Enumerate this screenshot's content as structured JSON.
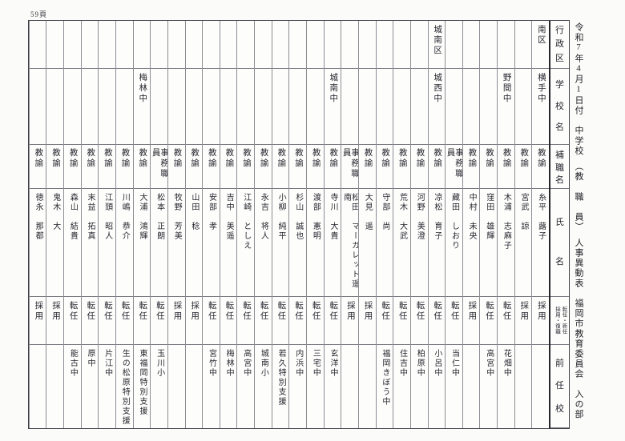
{
  "page": {
    "number_label": "59頁"
  },
  "document_title": "令和7年4月1日付　中学校　（教　職　員）　人事異動表　福岡市教育委員会　入の部",
  "table": {
    "headers": {
      "district": "行政区",
      "school": "学校名",
      "position": "補職名",
      "name": "氏名",
      "appointment_line1": "採用・復職",
      "appointment_line2": "転任・新任",
      "previous_school": "前任校"
    },
    "columns": [
      {
        "district": "南区",
        "school": "横手中",
        "position": "教諭",
        "name": "糸平　蕗子",
        "appointment": "採用",
        "previous_school": ""
      },
      {
        "district": "",
        "school": "",
        "position": "教諭",
        "name": "宮武　諒",
        "appointment": "採用",
        "previous_school": ""
      },
      {
        "district": "",
        "school": "野間中",
        "position": "教諭",
        "name": "木浦　志麻子",
        "appointment": "転任",
        "previous_school": "花畑中"
      },
      {
        "district": "",
        "school": "",
        "position": "教諭",
        "name": "窪田　雄輝",
        "appointment": "転任",
        "previous_school": "高宮中"
      },
      {
        "district": "",
        "school": "",
        "position": "教諭",
        "name": "中村　未央",
        "appointment": "採用",
        "previous_school": ""
      },
      {
        "district": "",
        "school": "",
        "position": "事務職員",
        "name": "藏田　しおり",
        "appointment": "転任",
        "previous_school": "当仁中"
      },
      {
        "district": "城南区",
        "school": "城西中",
        "position": "教諭",
        "name": "凉松　育子",
        "appointment": "転任",
        "previous_school": "小呂中"
      },
      {
        "district": "",
        "school": "",
        "position": "教諭",
        "name": "河野　美澄",
        "appointment": "転任",
        "previous_school": "柏原中"
      },
      {
        "district": "",
        "school": "",
        "position": "教諭",
        "name": "荒木　大武",
        "appointment": "転任",
        "previous_school": "住吉中"
      },
      {
        "district": "",
        "school": "",
        "position": "教諭",
        "name": "守部　尚",
        "appointment": "転任",
        "previous_school": "福岡きぼう中"
      },
      {
        "district": "",
        "school": "",
        "position": "教諭",
        "name": "大見　遥",
        "appointment": "採用",
        "previous_school": ""
      },
      {
        "district": "",
        "school": "",
        "position": "事務職員",
        "name": "松田　マーガレット遥南",
        "appointment": "採用",
        "previous_school": ""
      },
      {
        "district": "",
        "school": "城南中",
        "position": "教諭",
        "name": "寺川　大貴",
        "appointment": "転任",
        "previous_school": "玄洋中"
      },
      {
        "district": "",
        "school": "",
        "position": "教諭",
        "name": "渡部　憲明",
        "appointment": "転任",
        "previous_school": "三宅中"
      },
      {
        "district": "",
        "school": "",
        "position": "教諭",
        "name": "杉山　誠也",
        "appointment": "転任",
        "previous_school": "内浜中"
      },
      {
        "district": "",
        "school": "",
        "position": "教諭",
        "name": "小柳　純平",
        "appointment": "転任",
        "previous_school": "若久特別支援"
      },
      {
        "district": "",
        "school": "",
        "position": "教諭",
        "name": "永吉　将人",
        "appointment": "転任",
        "previous_school": "城南小"
      },
      {
        "district": "",
        "school": "",
        "position": "教諭",
        "name": "江崎　としえ",
        "appointment": "転任",
        "previous_school": "高宮中"
      },
      {
        "district": "",
        "school": "",
        "position": "教諭",
        "name": "吉中　美遥",
        "appointment": "転任",
        "previous_school": "梅林中"
      },
      {
        "district": "",
        "school": "",
        "position": "教諭",
        "name": "安部　孝",
        "appointment": "転任",
        "previous_school": "宮竹中"
      },
      {
        "district": "",
        "school": "",
        "position": "教諭",
        "name": "山田　稔",
        "appointment": "採用",
        "previous_school": ""
      },
      {
        "district": "",
        "school": "",
        "position": "教諭",
        "name": "牧野　芳美",
        "appointment": "採用",
        "previous_school": ""
      },
      {
        "district": "",
        "school": "",
        "position": "事務職員",
        "name": "松本　正朗",
        "appointment": "転任",
        "previous_school": "玉川小"
      },
      {
        "district": "",
        "school": "梅林中",
        "position": "教諭",
        "name": "大浦　鴻輝",
        "appointment": "転任",
        "previous_school": "東福岡特別支援"
      },
      {
        "district": "",
        "school": "",
        "position": "教諭",
        "name": "川嶋　恭介",
        "appointment": "転任",
        "previous_school": "生の松原特別支援"
      },
      {
        "district": "",
        "school": "",
        "position": "教諭",
        "name": "江頭　昭人",
        "appointment": "転任",
        "previous_school": "片江中"
      },
      {
        "district": "",
        "school": "",
        "position": "教諭",
        "name": "末益　拓真",
        "appointment": "転任",
        "previous_school": "原中"
      },
      {
        "district": "",
        "school": "",
        "position": "教諭",
        "name": "森山　結貴",
        "appointment": "転任",
        "previous_school": "能古中"
      },
      {
        "district": "",
        "school": "",
        "position": "教諭",
        "name": "鬼木　大",
        "appointment": "採用",
        "previous_school": ""
      },
      {
        "district": "",
        "school": "",
        "position": "教諭",
        "name": "徳永　那都",
        "appointment": "採用",
        "previous_school": ""
      }
    ]
  }
}
